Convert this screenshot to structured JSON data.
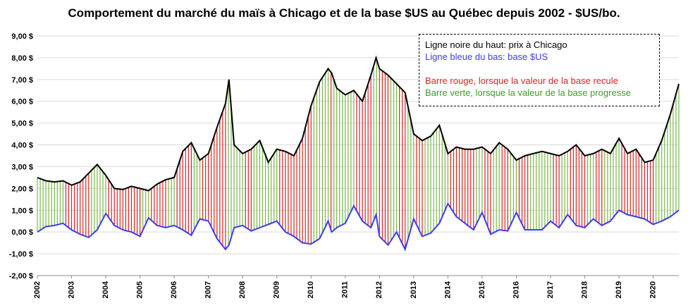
{
  "chart_data": {
    "type": "line",
    "title": "Comportement du marché du maïs à Chicago et de la base $US au Québec depuis 2002 - $US/bo.",
    "xlabel": "",
    "ylabel": "",
    "ylim": [
      -2,
      9
    ],
    "y_ticks": [
      "-2,00 $",
      "-1,00 $",
      "0,00 $",
      "1,00 $",
      "2,00 $",
      "3,00 $",
      "4,00 $",
      "5,00 $",
      "6,00 $",
      "7,00 $",
      "8,00 $",
      "9,00 $"
    ],
    "x_ticks": [
      "2002",
      "2003",
      "2004",
      "2005",
      "2006",
      "2007",
      "2008",
      "2009",
      "2010",
      "2011",
      "2012",
      "2013",
      "2014",
      "2015",
      "2016",
      "2017",
      "2018",
      "2019",
      "2020"
    ],
    "x_range": [
      2002.0,
      2020.75
    ],
    "grid": true,
    "legend_position": "top-right",
    "legend": {
      "line1": "Ligne noire du haut: prix à Chicago",
      "line2": "Ligne bleue du bas: base $US",
      "bar1": "Barre rouge, lorsque la valeur de la base recule",
      "bar2": "Barre verte, lorsque la valeur de la base progresse"
    },
    "colors": {
      "price": "#000000",
      "basis": "#3a3df0",
      "bar_down": "#e02020",
      "bar_up": "#7ab648",
      "grid": "#d9d9d9"
    },
    "series": [
      {
        "key": "chicago_price",
        "x": [
          2002.0,
          2002.25,
          2002.5,
          2002.75,
          2003.0,
          2003.25,
          2003.5,
          2003.75,
          2004.0,
          2004.25,
          2004.5,
          2004.75,
          2005.0,
          2005.25,
          2005.5,
          2005.75,
          2006.0,
          2006.25,
          2006.5,
          2006.75,
          2007.0,
          2007.25,
          2007.5,
          2007.6,
          2007.75,
          2008.0,
          2008.25,
          2008.5,
          2008.75,
          2009.0,
          2009.25,
          2009.5,
          2009.75,
          2010.0,
          2010.25,
          2010.5,
          2010.6,
          2010.75,
          2011.0,
          2011.25,
          2011.5,
          2011.75,
          2011.9,
          2012.0,
          2012.25,
          2012.5,
          2012.75,
          2013.0,
          2013.25,
          2013.5,
          2013.75,
          2014.0,
          2014.25,
          2014.5,
          2014.75,
          2015.0,
          2015.25,
          2015.5,
          2015.75,
          2016.0,
          2016.25,
          2016.5,
          2016.75,
          2017.0,
          2017.25,
          2017.5,
          2017.75,
          2018.0,
          2018.25,
          2018.5,
          2018.75,
          2019.0,
          2019.25,
          2019.5,
          2019.75,
          2020.0,
          2020.25,
          2020.5,
          2020.75
        ],
        "y": [
          2.5,
          2.35,
          2.3,
          2.35,
          2.15,
          2.3,
          2.7,
          3.1,
          2.6,
          2.0,
          1.95,
          2.1,
          2.0,
          1.9,
          2.2,
          2.4,
          2.5,
          3.7,
          4.1,
          3.3,
          3.6,
          4.8,
          5.9,
          7.0,
          4.0,
          3.6,
          3.8,
          4.2,
          3.2,
          3.8,
          3.7,
          3.5,
          4.3,
          5.8,
          6.9,
          7.5,
          7.3,
          6.6,
          6.3,
          6.5,
          6.0,
          7.2,
          8.0,
          7.5,
          7.2,
          6.8,
          6.4,
          4.5,
          4.2,
          4.4,
          4.9,
          3.6,
          3.9,
          3.8,
          3.8,
          3.9,
          3.6,
          4.1,
          3.8,
          3.3,
          3.5,
          3.6,
          3.7,
          3.6,
          3.5,
          3.7,
          4.0,
          3.5,
          3.6,
          3.8,
          3.6,
          4.3,
          3.6,
          3.8,
          3.2,
          3.3,
          4.2,
          5.4,
          6.8
        ]
      },
      {
        "key": "basis_usd",
        "x": [
          2002.0,
          2002.25,
          2002.5,
          2002.75,
          2003.0,
          2003.25,
          2003.5,
          2003.75,
          2004.0,
          2004.25,
          2004.5,
          2004.75,
          2005.0,
          2005.25,
          2005.5,
          2005.75,
          2006.0,
          2006.25,
          2006.5,
          2006.75,
          2007.0,
          2007.25,
          2007.5,
          2007.6,
          2007.75,
          2008.0,
          2008.25,
          2008.5,
          2008.75,
          2009.0,
          2009.25,
          2009.5,
          2009.75,
          2010.0,
          2010.25,
          2010.5,
          2010.6,
          2010.75,
          2011.0,
          2011.25,
          2011.5,
          2011.75,
          2011.9,
          2012.0,
          2012.25,
          2012.5,
          2012.75,
          2013.0,
          2013.25,
          2013.5,
          2013.75,
          2014.0,
          2014.25,
          2014.5,
          2014.75,
          2015.0,
          2015.25,
          2015.5,
          2015.75,
          2016.0,
          2016.25,
          2016.5,
          2016.75,
          2017.0,
          2017.25,
          2017.5,
          2017.75,
          2018.0,
          2018.25,
          2018.5,
          2018.75,
          2019.0,
          2019.25,
          2019.5,
          2019.75,
          2020.0,
          2020.25,
          2020.5,
          2020.75
        ],
        "y": [
          0.0,
          0.25,
          0.3,
          0.4,
          0.1,
          -0.1,
          -0.25,
          0.1,
          0.85,
          0.3,
          0.1,
          0.0,
          -0.2,
          0.65,
          0.3,
          0.2,
          0.3,
          0.1,
          -0.15,
          0.6,
          0.5,
          -0.3,
          -0.8,
          -0.6,
          0.2,
          0.3,
          0.05,
          0.2,
          0.35,
          0.5,
          0.0,
          -0.2,
          -0.5,
          -0.55,
          -0.3,
          0.5,
          0.0,
          0.2,
          0.4,
          1.2,
          0.5,
          0.2,
          0.8,
          -0.2,
          -0.6,
          0.0,
          -0.8,
          0.6,
          -0.2,
          -0.05,
          0.4,
          1.3,
          0.7,
          0.4,
          0.1,
          0.9,
          -0.1,
          0.1,
          0.05,
          0.9,
          0.1,
          0.1,
          0.1,
          0.5,
          0.2,
          0.8,
          0.3,
          0.2,
          0.6,
          0.3,
          0.5,
          1.0,
          0.8,
          0.7,
          0.6,
          0.35,
          0.5,
          0.7,
          1.0
        ]
      }
    ]
  }
}
